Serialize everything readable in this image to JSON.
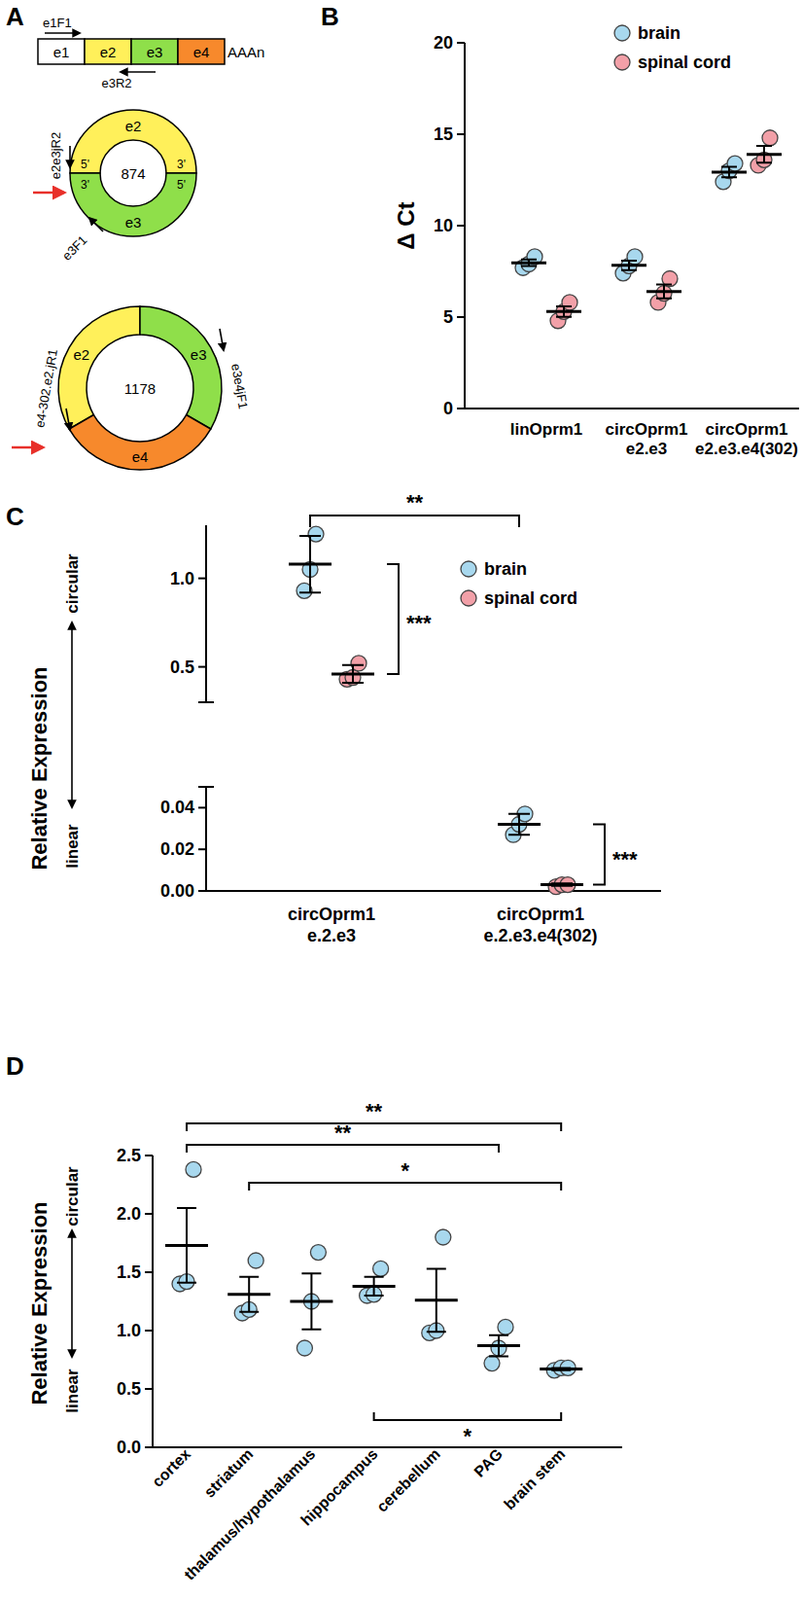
{
  "diagram": {
    "panel": "A",
    "linear": {
      "exons": [
        "e1",
        "e2",
        "e3",
        "e4"
      ],
      "tail": "AAAn",
      "forward_primer": "e1F1",
      "reverse_primer": "e3R2"
    },
    "circles": [
      {
        "size": 874,
        "exons": [
          "e2",
          "e3"
        ],
        "ends": [
          "5'",
          "3'",
          "3'",
          "5'"
        ],
        "reverse_primer": "e2e3jR2",
        "forward_primer": "e3F1"
      },
      {
        "size": 1178,
        "exons": [
          "e2",
          "e3",
          "e4"
        ],
        "reverse_primer": "e4-302.e2.jR1",
        "forward_primer": "e3e4jF1"
      }
    ]
  },
  "chart_data": [
    {
      "panel": "B",
      "type": "scatter",
      "y_label": "Δ Ct",
      "categories": [
        "linOprm1",
        "circOprm1\ne2.e3",
        "circOprm1\ne2.e3.e4(302)"
      ],
      "ylim": [
        0,
        20
      ],
      "yticks": [
        0,
        5,
        10,
        15,
        20
      ],
      "legend": "top",
      "series": [
        {
          "name": "brain",
          "color": "#a8d8ee",
          "values": [
            [
              7.7,
              7.9,
              8.3
            ],
            [
              7.4,
              7.8,
              8.3
            ],
            [
              12.4,
              13.0,
              13.4
            ]
          ],
          "means": [
            7.97,
            7.83,
            12.93
          ],
          "errors": [
            0.18,
            0.26,
            0.29
          ]
        },
        {
          "name": "spinal cord",
          "color": "#f2a0a8",
          "values": [
            [
              4.8,
              5.3,
              5.8
            ],
            [
              5.8,
              6.3,
              7.1
            ],
            [
              13.3,
              13.6,
              14.8
            ]
          ],
          "means": [
            5.3,
            6.4,
            13.9
          ],
          "errors": [
            0.29,
            0.38,
            0.46
          ]
        }
      ]
    },
    {
      "panel": "C",
      "type": "scatter",
      "y_label": "Relative Expression",
      "y_label_top": "circular",
      "y_label_bottom": "linear",
      "categories": [
        "circOprm1\ne.2.e3",
        "circOprm1\ne.2.e3.e4(302)"
      ],
      "y_segments": [
        {
          "ylim": [
            0,
            0.05
          ],
          "yticks": [
            {
              "value": 0,
              "label": "0.00"
            },
            0.02,
            0.04
          ]
        },
        {
          "ylim": [
            0.3,
            1.3
          ],
          "yticks": [
            0.5,
            {
              "value": 1,
              "label": "1.0"
            }
          ]
        }
      ],
      "legend": "top",
      "series": [
        {
          "name": "brain",
          "color": "#a8d8ee",
          "values": [
            [
              0.93,
              1.05,
              1.25
            ],
            [
              0.027,
              0.032,
              0.037
            ]
          ],
          "means": [
            1.08,
            0.032
          ],
          "errors": [
            0.16,
            0.005
          ]
        },
        {
          "name": "spinal cord",
          "color": "#f2a0a8",
          "values": [
            [
              0.43,
              0.44,
              0.52
            ],
            [
              0.002,
              0.003,
              0.003
            ]
          ],
          "means": [
            0.46,
            0.003
          ],
          "errors": [
            0.05,
            0.0006
          ]
        }
      ],
      "annotations": [
        {
          "text": "**",
          "between": [
            "circOprm1\ne.2.e3",
            "circOprm1\ne.2.e3.e4(302)"
          ],
          "series": "brain"
        },
        {
          "text": "***",
          "category": "circOprm1\ne.2.e3",
          "between": [
            "brain",
            "spinal cord"
          ]
        },
        {
          "text": "***",
          "category": "circOprm1\ne.2.e3.e4(302)",
          "between": [
            "brain",
            "spinal cord"
          ]
        }
      ]
    },
    {
      "panel": "D",
      "type": "scatter",
      "y_label": "Relative Expression",
      "y_label_top": "circular",
      "y_label_bottom": "linear",
      "categories": [
        "cortex",
        "striatum",
        "thalamus/hypothalamus",
        "hippocampus",
        "cerebellum",
        "PAG",
        "brain stem"
      ],
      "ylim": [
        0,
        2.5
      ],
      "yticks": [
        {
          "value": 0,
          "label": "0.0"
        },
        0.5,
        {
          "value": 1,
          "label": "1.0"
        },
        1.5,
        {
          "value": 2,
          "label": "2.0"
        },
        2.5
      ],
      "series": [
        {
          "color": "#a8d8ee",
          "values": [
            [
              1.4,
              1.42,
              2.38
            ],
            [
              1.15,
              1.18,
              1.6
            ],
            [
              0.85,
              1.25,
              1.67
            ],
            [
              1.3,
              1.31,
              1.53
            ],
            [
              0.98,
              1.0,
              1.8
            ],
            [
              0.72,
              0.85,
              1.03
            ],
            [
              0.66,
              0.68,
              0.68
            ]
          ],
          "means": [
            1.73,
            1.31,
            1.25,
            1.38,
            1.26,
            0.87,
            0.67
          ],
          "errors": [
            0.32,
            0.15,
            0.24,
            0.08,
            0.27,
            0.09,
            0.01
          ]
        }
      ],
      "annotations": [
        {
          "text": "**",
          "between": [
            "cortex",
            "brain stem"
          ]
        },
        {
          "text": "**",
          "between": [
            "cortex",
            "PAG"
          ]
        },
        {
          "text": "*",
          "between": [
            "striatum",
            "brain stem"
          ]
        },
        {
          "text": "*",
          "between": [
            "hippocampus",
            "brain stem"
          ]
        }
      ]
    }
  ]
}
